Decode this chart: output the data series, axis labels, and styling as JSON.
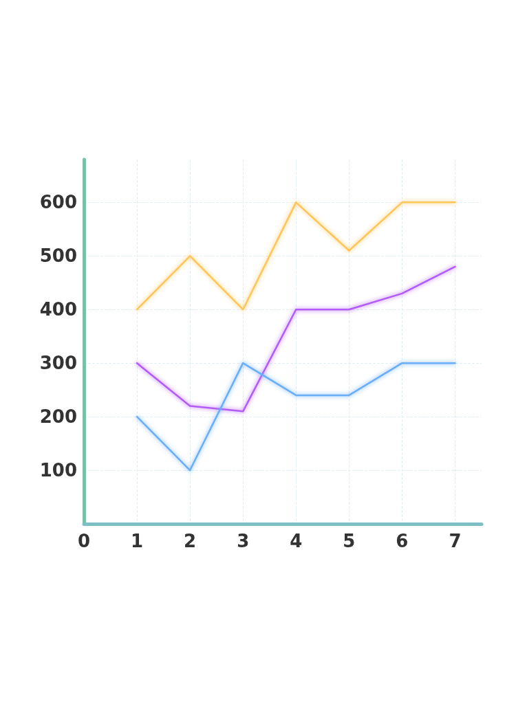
{
  "chart_data": {
    "type": "line",
    "x": [
      1,
      2,
      3,
      4,
      5,
      6,
      7
    ],
    "series": [
      {
        "color": "#fdc55a",
        "values": [
          400,
          500,
          400,
          600,
          510,
          600,
          600
        ]
      },
      {
        "color": "#b25cf8",
        "values": [
          300,
          220,
          210,
          400,
          400,
          430,
          480
        ]
      },
      {
        "color": "#6aaef8",
        "values": [
          200,
          100,
          300,
          240,
          240,
          300,
          300
        ]
      }
    ],
    "xlim": [
      0,
      7.5
    ],
    "xticks": [
      0,
      1,
      2,
      3,
      4,
      5,
      6,
      7
    ],
    "ylim": [
      0,
      680
    ],
    "yticks": [
      100,
      200,
      300,
      400,
      500,
      600
    ],
    "grid": true,
    "marker": "none",
    "line_style": "solid"
  }
}
